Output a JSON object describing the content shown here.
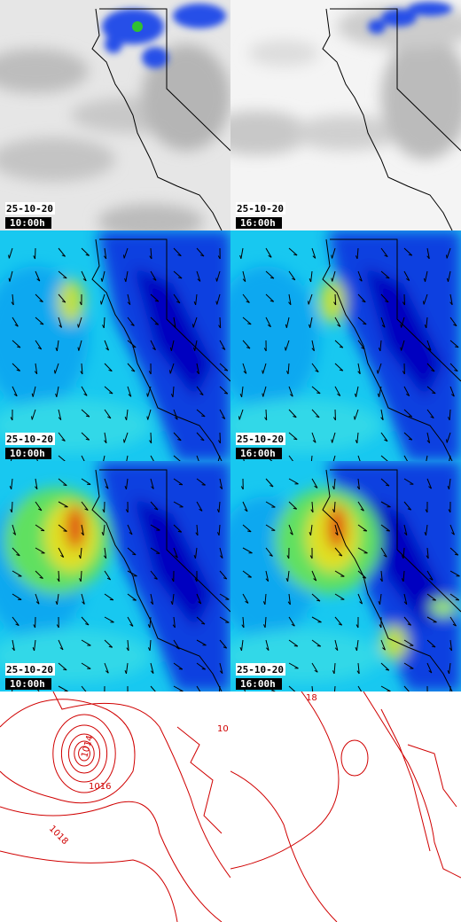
{
  "panels": [
    {
      "date": "25-10-20",
      "time": "10:00h"
    },
    {
      "date": "25-10-20",
      "time": "16:00h"
    },
    {
      "date": "25-10-20",
      "time": "10:00h"
    },
    {
      "date": "25-10-20",
      "time": "16:00h"
    },
    {
      "date": "25-10-20",
      "time": "10:00h"
    },
    {
      "date": "25-10-20",
      "time": "16:00h"
    }
  ],
  "contour_labels": [
    "1014",
    "1016",
    "1018",
    "10",
    "18"
  ]
}
